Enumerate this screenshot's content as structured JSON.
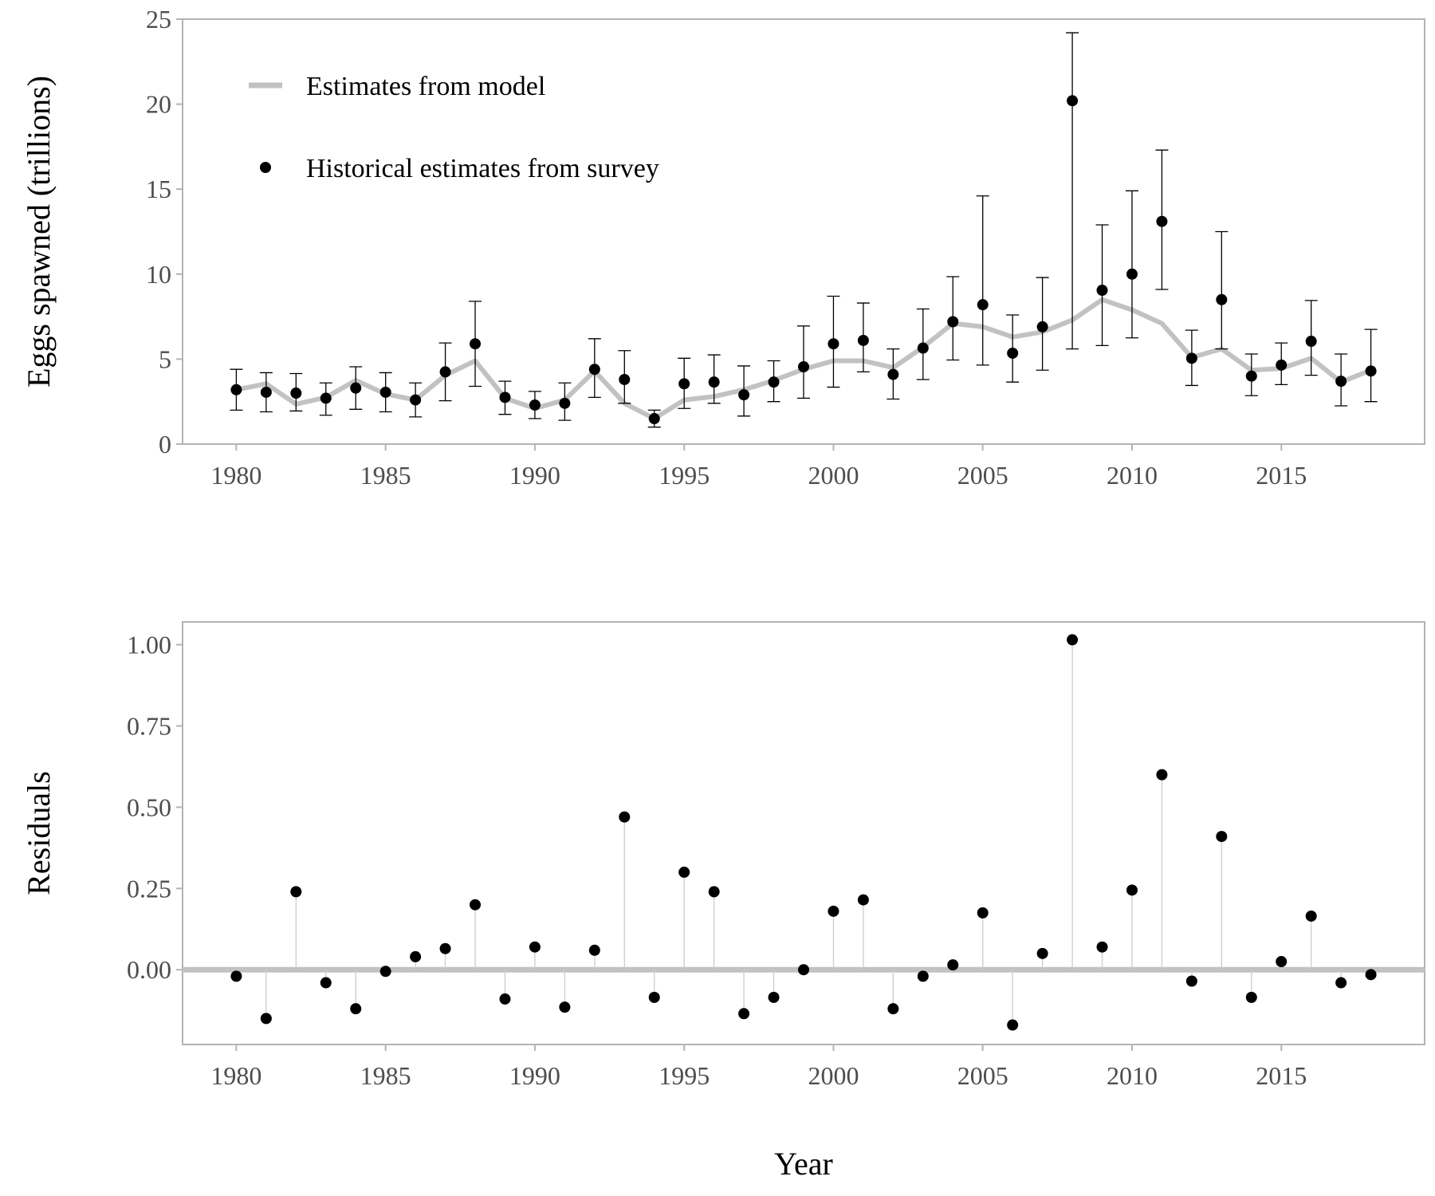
{
  "chart_data": [
    {
      "type": "line",
      "ylabel": "Eggs spawned (trillions)",
      "xlim": [
        1978.2,
        2019.8
      ],
      "ylim": [
        0,
        25
      ],
      "xticks": [
        1980,
        1985,
        1990,
        1995,
        2000,
        2005,
        2010,
        2015
      ],
      "yticks": [
        0,
        5,
        10,
        15,
        20,
        25
      ],
      "grid": false,
      "legend": {
        "position": "top-left",
        "model_label": "Estimates from model",
        "survey_label": "Historical estimates from survey"
      },
      "colors": {
        "model": "#c2c2c2",
        "survey": "#000000",
        "frame": "#b3b3b3"
      },
      "x": [
        1980,
        1981,
        1982,
        1983,
        1984,
        1985,
        1986,
        1987,
        1988,
        1989,
        1990,
        1991,
        1992,
        1993,
        1994,
        1995,
        1996,
        1997,
        1998,
        1999,
        2000,
        2001,
        2002,
        2003,
        2004,
        2005,
        2006,
        2007,
        2008,
        2009,
        2010,
        2011,
        2012,
        2013,
        2014,
        2015,
        2016,
        2017,
        2018
      ],
      "series": [
        {
          "name": "Estimates from model",
          "values": [
            3.2,
            3.55,
            2.35,
            2.75,
            3.75,
            2.95,
            2.6,
            4.05,
            4.9,
            2.7,
            2.1,
            2.6,
            4.3,
            2.4,
            1.5,
            2.6,
            2.8,
            3.2,
            3.75,
            4.4,
            4.9,
            4.9,
            4.5,
            5.7,
            7.1,
            6.9,
            6.3,
            6.6,
            7.3,
            8.5,
            7.9,
            7.1,
            5.1,
            5.6,
            4.35,
            4.45,
            5.05,
            3.65,
            4.35
          ]
        },
        {
          "name": "Historical estimates from survey",
          "values": [
            3.2,
            3.05,
            3.0,
            2.7,
            3.3,
            3.05,
            2.6,
            4.25,
            5.9,
            2.75,
            2.3,
            2.4,
            4.4,
            3.8,
            1.5,
            3.55,
            3.65,
            2.9,
            3.65,
            4.55,
            5.9,
            6.1,
            4.1,
            5.65,
            7.2,
            8.2,
            5.35,
            6.9,
            20.2,
            9.05,
            10.0,
            13.1,
            5.05,
            8.5,
            4.0,
            4.65,
            6.05,
            3.7,
            4.3
          ],
          "lower": [
            2.0,
            1.9,
            1.95,
            1.7,
            2.05,
            1.9,
            1.6,
            2.55,
            3.4,
            1.75,
            1.5,
            1.4,
            2.75,
            2.4,
            1.0,
            2.1,
            2.4,
            1.65,
            2.5,
            2.7,
            3.35,
            4.25,
            2.65,
            3.8,
            4.95,
            4.65,
            3.65,
            4.35,
            5.6,
            5.8,
            6.25,
            9.1,
            3.45,
            5.6,
            2.85,
            3.5,
            4.05,
            2.25,
            2.5
          ],
          "upper": [
            4.4,
            4.2,
            4.15,
            3.6,
            4.55,
            4.2,
            3.6,
            5.95,
            8.4,
            3.7,
            3.1,
            3.6,
            6.2,
            5.5,
            2.0,
            5.05,
            5.25,
            4.6,
            4.9,
            6.95,
            8.7,
            8.3,
            5.6,
            7.95,
            9.85,
            14.6,
            7.6,
            9.8,
            24.2,
            12.9,
            14.9,
            17.3,
            6.7,
            12.5,
            5.3,
            5.95,
            8.45,
            5.3,
            6.75
          ]
        }
      ]
    },
    {
      "type": "scatter",
      "ylabel": "Residuals",
      "xlabel": "Year",
      "xlim": [
        1978.2,
        2019.8
      ],
      "ylim": [
        -0.23,
        1.07
      ],
      "xticks": [
        1980,
        1985,
        1990,
        1995,
        2000,
        2005,
        2010,
        2015
      ],
      "yticks": [
        0.0,
        0.25,
        0.5,
        0.75,
        1.0
      ],
      "ytick_labels": [
        "0.00",
        "0.25",
        "0.50",
        "0.75",
        "1.00"
      ],
      "grid": false,
      "reference_line": 0,
      "colors": {
        "points": "#000000",
        "stems": "#cccccc",
        "zero_line": "#c2c2c2",
        "frame": "#b3b3b3"
      },
      "x": [
        1980,
        1981,
        1982,
        1983,
        1984,
        1985,
        1986,
        1987,
        1988,
        1989,
        1990,
        1991,
        1992,
        1993,
        1994,
        1995,
        1996,
        1997,
        1998,
        1999,
        2000,
        2001,
        2002,
        2003,
        2004,
        2005,
        2006,
        2007,
        2008,
        2009,
        2010,
        2011,
        2012,
        2013,
        2014,
        2015,
        2016,
        2017,
        2018
      ],
      "values": [
        -0.02,
        -0.15,
        0.24,
        -0.04,
        -0.12,
        -0.005,
        0.04,
        0.065,
        0.2,
        -0.09,
        0.07,
        -0.115,
        0.06,
        0.47,
        -0.085,
        0.3,
        0.24,
        -0.135,
        -0.085,
        0.0,
        0.18,
        0.215,
        -0.12,
        -0.02,
        0.015,
        0.175,
        -0.17,
        0.05,
        1.015,
        0.07,
        0.245,
        0.6,
        -0.035,
        0.41,
        -0.085,
        0.025,
        0.165,
        -0.04,
        -0.015
      ]
    }
  ]
}
